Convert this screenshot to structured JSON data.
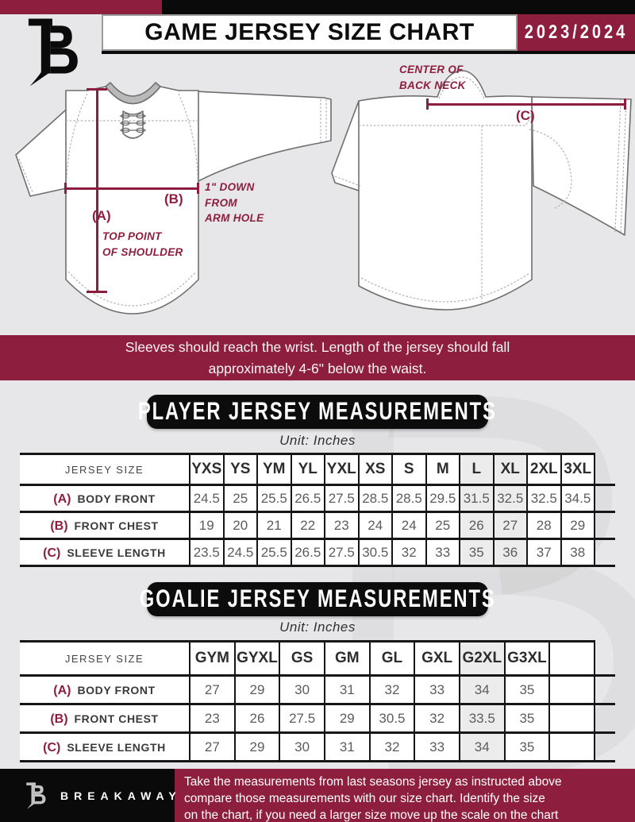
{
  "header": {
    "title": "GAME JERSEY SIZE CHART",
    "season": "2023/2024",
    "logo": "breakaway-b-monogram"
  },
  "colors": {
    "maroon": "#8e1e3e",
    "black": "#0a0a0a",
    "page_background": "#e7e6e8",
    "value_text": "#5c5c5c"
  },
  "diagram": {
    "a_tag": "(A)",
    "a_line1": "TOP POINT",
    "a_line2": "OF SHOULDER",
    "b_tag": "(B)",
    "b_line1": "1\" DOWN",
    "b_line2": "FROM",
    "b_line3": "ARM HOLE",
    "c_tag": "(C)",
    "c_line1": "CENTER OF",
    "c_line2": "BACK NECK"
  },
  "notice": {
    "line1": "Sleeves should reach the wrist. Length of the jersey should fall",
    "line2": "approximately 4-6\" below the waist."
  },
  "player_section": {
    "title": "PLAYER JERSEY MEASUREMENTS",
    "unit": "Unit: Inches",
    "table": {
      "header": [
        "JERSEY SIZE",
        "YXS",
        "YS",
        "YM",
        "YL",
        "YXL",
        "XS",
        "S",
        "M",
        "L",
        "XL",
        "2XL",
        "3XL"
      ],
      "rows": [
        {
          "tag": "(A)",
          "label": "BODY FRONT",
          "values": [
            "24.5",
            "25",
            "25.5",
            "26.5",
            "27.5",
            "28.5",
            "28.5",
            "29.5",
            "31.5",
            "32.5",
            "32.5",
            "34.5"
          ]
        },
        {
          "tag": "(B)",
          "label": "FRONT CHEST",
          "values": [
            "19",
            "20",
            "21",
            "22",
            "23",
            "24",
            "24",
            "25",
            "26",
            "27",
            "28",
            "29"
          ]
        },
        {
          "tag": "(C)",
          "label": "SLEEVE LENGTH",
          "values": [
            "23.5",
            "24.5",
            "25.5",
            "26.5",
            "27.5",
            "30.5",
            "32",
            "33",
            "35",
            "36",
            "37",
            "38"
          ]
        }
      ]
    }
  },
  "goalie_section": {
    "title": "GOALIE JERSEY MEASUREMENTS",
    "unit": "Unit: Inches",
    "table": {
      "header": [
        "JERSEY SIZE",
        "GYM",
        "GYXL",
        "GS",
        "GM",
        "GL",
        "GXL",
        "G2XL",
        "G3XL",
        ""
      ],
      "rows": [
        {
          "tag": "(A)",
          "label": "BODY FRONT",
          "values": [
            "27",
            "29",
            "30",
            "31",
            "32",
            "33",
            "34",
            "35",
            ""
          ]
        },
        {
          "tag": "(B)",
          "label": "FRONT CHEST",
          "values": [
            "23",
            "26",
            "27.5",
            "29",
            "30.5",
            "32",
            "33.5",
            "35",
            ""
          ]
        },
        {
          "tag": "(C)",
          "label": "SLEEVE LENGTH",
          "values": [
            "27",
            "29",
            "30",
            "31",
            "32",
            "33",
            "34",
            "35",
            ""
          ]
        }
      ]
    }
  },
  "footer": {
    "brand": "BREAKAWAY",
    "line1": "Take the measurements from last seasons jersey as instructed above",
    "line2": "compare those measurements  with our size chart. Identify the size",
    "line3": "on the chart, if you need a larger size move up the scale on the chart"
  }
}
